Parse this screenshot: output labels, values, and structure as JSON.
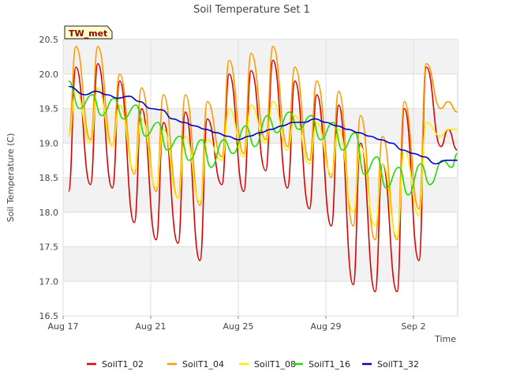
{
  "chart_data": {
    "type": "line",
    "title": "Soil Temperature Set 1",
    "xlabel": "Time",
    "ylabel": "Soil Temperature (C)",
    "ylim": [
      16.5,
      20.5
    ],
    "yticks": [
      "16.5",
      "17.0",
      "17.5",
      "18.0",
      "18.5",
      "19.0",
      "19.5",
      "20.0",
      "20.5"
    ],
    "xlim": [
      "2023-08-17",
      "2023-09-04"
    ],
    "xticks": [
      {
        "date": "2023-08-17",
        "label": "Aug 17"
      },
      {
        "date": "2023-08-21",
        "label": "Aug 21"
      },
      {
        "date": "2023-08-25",
        "label": "Aug 25"
      },
      {
        "date": "2023-08-29",
        "label": "Aug 29"
      },
      {
        "date": "2023-09-02",
        "label": "Sep 2"
      }
    ],
    "grid": true,
    "site_label": "TW_met",
    "legend_position": "bottom",
    "series": [
      {
        "name": "SoilT1_02",
        "color": "#dd0000",
        "x": [
          "2023-08-17 06:00",
          "2023-08-17 14:00",
          "2023-08-18 06:00",
          "2023-08-18 14:00",
          "2023-08-19 06:00",
          "2023-08-19 14:00",
          "2023-08-20 06:00",
          "2023-08-20 14:00",
          "2023-08-21 06:00",
          "2023-08-21 14:00",
          "2023-08-22 06:00",
          "2023-08-22 14:00",
          "2023-08-23 06:00",
          "2023-08-23 14:00",
          "2023-08-24 06:00",
          "2023-08-24 14:00",
          "2023-08-25 06:00",
          "2023-08-25 14:00",
          "2023-08-26 06:00",
          "2023-08-26 14:00",
          "2023-08-27 06:00",
          "2023-08-27 14:00",
          "2023-08-28 06:00",
          "2023-08-28 14:00",
          "2023-08-29 06:00",
          "2023-08-29 14:00",
          "2023-08-30 06:00",
          "2023-08-30 14:00",
          "2023-08-31 06:00",
          "2023-08-31 14:00",
          "2023-09-01 06:00",
          "2023-09-01 14:00",
          "2023-09-02 06:00",
          "2023-09-02 14:00",
          "2023-09-03 06:00",
          "2023-09-03 14:00",
          "2023-09-04 00:00"
        ],
        "y": [
          18.3,
          20.1,
          18.4,
          20.15,
          18.35,
          19.9,
          17.85,
          19.5,
          17.6,
          19.3,
          17.55,
          19.45,
          17.3,
          19.35,
          18.4,
          20.0,
          18.3,
          20.05,
          18.6,
          20.2,
          18.35,
          19.9,
          18.05,
          19.7,
          17.8,
          19.55,
          16.95,
          19.0,
          16.85,
          18.7,
          16.85,
          19.5,
          17.3,
          20.1,
          18.95,
          19.2,
          18.9
        ]
      },
      {
        "name": "SoilT1_04",
        "color": "#ff9900",
        "x": [
          "2023-08-17 06:00",
          "2023-08-17 14:00",
          "2023-08-18 06:00",
          "2023-08-18 14:00",
          "2023-08-19 06:00",
          "2023-08-19 14:00",
          "2023-08-20 06:00",
          "2023-08-20 14:00",
          "2023-08-21 06:00",
          "2023-08-21 14:00",
          "2023-08-22 06:00",
          "2023-08-22 14:00",
          "2023-08-23 06:00",
          "2023-08-23 14:00",
          "2023-08-24 06:00",
          "2023-08-24 14:00",
          "2023-08-25 06:00",
          "2023-08-25 14:00",
          "2023-08-26 06:00",
          "2023-08-26 14:00",
          "2023-08-27 06:00",
          "2023-08-27 14:00",
          "2023-08-28 06:00",
          "2023-08-28 14:00",
          "2023-08-29 06:00",
          "2023-08-29 14:00",
          "2023-08-30 06:00",
          "2023-08-30 14:00",
          "2023-08-31 06:00",
          "2023-08-31 14:00",
          "2023-09-01 06:00",
          "2023-09-01 14:00",
          "2023-09-02 06:00",
          "2023-09-02 14:00",
          "2023-09-03 06:00",
          "2023-09-03 14:00",
          "2023-09-04 00:00"
        ],
        "y": [
          19.1,
          20.4,
          19.05,
          20.4,
          18.95,
          20.0,
          18.55,
          19.8,
          18.3,
          19.7,
          18.2,
          19.7,
          18.1,
          19.6,
          18.8,
          20.2,
          18.85,
          20.3,
          19.05,
          20.4,
          18.95,
          20.1,
          18.75,
          19.9,
          18.5,
          19.75,
          17.8,
          19.4,
          17.6,
          19.1,
          17.6,
          19.6,
          18.05,
          20.15,
          19.5,
          19.6,
          19.45
        ]
      },
      {
        "name": "SoilT1_08",
        "color": "#ffee00",
        "x": [
          "2023-08-17 06:00",
          "2023-08-17 14:00",
          "2023-08-18 06:00",
          "2023-08-18 14:00",
          "2023-08-19 06:00",
          "2023-08-19 14:00",
          "2023-08-20 06:00",
          "2023-08-20 14:00",
          "2023-08-21 06:00",
          "2023-08-21 14:00",
          "2023-08-22 06:00",
          "2023-08-22 14:00",
          "2023-08-23 06:00",
          "2023-08-23 14:00",
          "2023-08-24 06:00",
          "2023-08-24 14:00",
          "2023-08-25 06:00",
          "2023-08-25 14:00",
          "2023-08-26 06:00",
          "2023-08-26 14:00",
          "2023-08-27 06:00",
          "2023-08-27 14:00",
          "2023-08-28 06:00",
          "2023-08-28 14:00",
          "2023-08-29 06:00",
          "2023-08-29 14:00",
          "2023-08-30 06:00",
          "2023-08-30 14:00",
          "2023-08-31 06:00",
          "2023-08-31 14:00",
          "2023-09-01 06:00",
          "2023-09-01 14:00",
          "2023-09-02 06:00",
          "2023-09-02 14:00",
          "2023-09-03 06:00",
          "2023-09-03 14:00",
          "2023-09-04 00:00"
        ],
        "y": [
          19.1,
          19.75,
          19.0,
          19.8,
          18.95,
          19.55,
          18.6,
          19.35,
          18.35,
          19.2,
          18.2,
          19.1,
          18.15,
          19.05,
          18.75,
          19.5,
          18.8,
          19.55,
          19.0,
          19.6,
          18.9,
          19.4,
          18.7,
          19.3,
          18.55,
          19.2,
          18.0,
          18.95,
          17.8,
          18.7,
          17.65,
          18.9,
          17.95,
          19.3,
          19.1,
          19.2,
          19.2
        ]
      },
      {
        "name": "SoilT1_16",
        "color": "#22dd00",
        "x": [
          "2023-08-17 06:00",
          "2023-08-17 18:00",
          "2023-08-18 08:00",
          "2023-08-18 18:00",
          "2023-08-19 08:00",
          "2023-08-19 18:00",
          "2023-08-20 08:00",
          "2023-08-20 18:00",
          "2023-08-21 08:00",
          "2023-08-21 18:00",
          "2023-08-22 08:00",
          "2023-08-22 18:00",
          "2023-08-23 08:00",
          "2023-08-23 18:00",
          "2023-08-24 08:00",
          "2023-08-24 18:00",
          "2023-08-25 08:00",
          "2023-08-25 18:00",
          "2023-08-26 08:00",
          "2023-08-26 18:00",
          "2023-08-27 08:00",
          "2023-08-27 18:00",
          "2023-08-28 08:00",
          "2023-08-28 18:00",
          "2023-08-29 08:00",
          "2023-08-29 18:00",
          "2023-08-30 08:00",
          "2023-08-30 18:00",
          "2023-08-31 08:00",
          "2023-08-31 18:00",
          "2023-09-01 08:00",
          "2023-09-01 18:00",
          "2023-09-02 08:00",
          "2023-09-02 18:00",
          "2023-09-03 08:00",
          "2023-09-03 18:00",
          "2023-09-04 00:00"
        ],
        "y": [
          19.9,
          19.5,
          19.7,
          19.4,
          19.65,
          19.35,
          19.55,
          19.1,
          19.3,
          18.9,
          19.1,
          18.75,
          19.05,
          18.65,
          19.05,
          18.85,
          19.25,
          18.95,
          19.4,
          19.15,
          19.45,
          19.2,
          19.4,
          19.05,
          19.3,
          18.9,
          19.15,
          18.55,
          18.8,
          18.35,
          18.65,
          18.25,
          18.7,
          18.4,
          18.75,
          18.65,
          18.85
        ]
      },
      {
        "name": "SoilT1_32",
        "color": "#0000cc",
        "x": [
          "2023-08-17 06:00",
          "2023-08-18 00:00",
          "2023-08-18 12:00",
          "2023-08-19 00:00",
          "2023-08-19 12:00",
          "2023-08-20 00:00",
          "2023-08-20 12:00",
          "2023-08-21 00:00",
          "2023-08-21 12:00",
          "2023-08-22 00:00",
          "2023-08-22 12:00",
          "2023-08-23 00:00",
          "2023-08-23 12:00",
          "2023-08-24 00:00",
          "2023-08-24 12:00",
          "2023-08-25 00:00",
          "2023-08-25 12:00",
          "2023-08-26 00:00",
          "2023-08-26 12:00",
          "2023-08-27 00:00",
          "2023-08-27 12:00",
          "2023-08-28 00:00",
          "2023-08-28 12:00",
          "2023-08-29 00:00",
          "2023-08-29 12:00",
          "2023-08-30 00:00",
          "2023-08-30 12:00",
          "2023-08-31 00:00",
          "2023-08-31 12:00",
          "2023-09-01 00:00",
          "2023-09-01 12:00",
          "2023-09-02 00:00",
          "2023-09-02 12:00",
          "2023-09-03 00:00",
          "2023-09-03 12:00",
          "2023-09-04 00:00"
        ],
        "y": [
          19.82,
          19.7,
          19.75,
          19.7,
          19.65,
          19.68,
          19.6,
          19.5,
          19.48,
          19.35,
          19.3,
          19.25,
          19.2,
          19.15,
          19.1,
          19.05,
          19.1,
          19.15,
          19.2,
          19.25,
          19.3,
          19.3,
          19.35,
          19.3,
          19.25,
          19.2,
          19.15,
          19.1,
          19.05,
          19.0,
          18.9,
          18.85,
          18.8,
          18.7,
          18.75,
          18.75
        ]
      }
    ]
  }
}
